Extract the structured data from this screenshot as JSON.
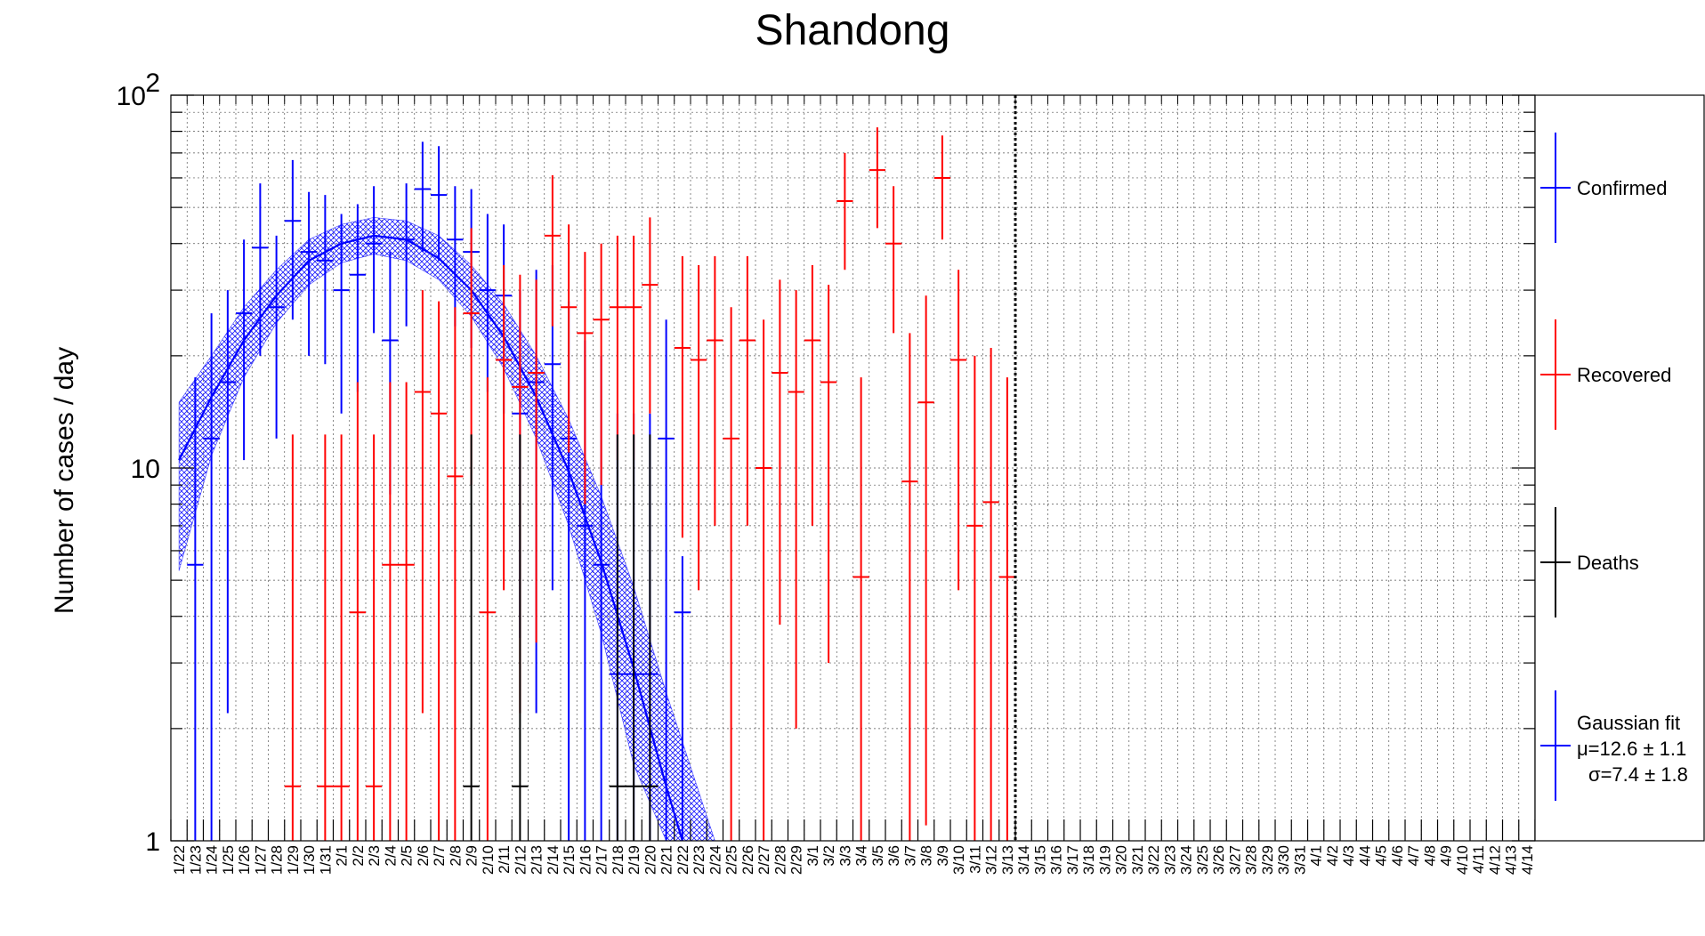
{
  "chart_data": {
    "type": "scatter",
    "title": "Shandong",
    "ylabel": "Number of cases / day",
    "xlabel": "",
    "y_scale": "log",
    "ylim": [
      1,
      100
    ],
    "y_tick_labels": [
      {
        "value": 1,
        "label": "1"
      },
      {
        "value": 10,
        "label": "10"
      },
      {
        "value": 100,
        "label": "10",
        "exponent": "2"
      }
    ],
    "grid": true,
    "legend_position": "right",
    "categories": [
      "1/22",
      "1/23",
      "1/24",
      "1/25",
      "1/26",
      "1/27",
      "1/28",
      "1/29",
      "1/30",
      "1/31",
      "2/1",
      "2/2",
      "2/3",
      "2/4",
      "2/5",
      "2/6",
      "2/7",
      "2/8",
      "2/9",
      "2/10",
      "2/11",
      "2/12",
      "2/13",
      "2/14",
      "2/15",
      "2/16",
      "2/17",
      "2/18",
      "2/19",
      "2/20",
      "2/21",
      "2/22",
      "2/23",
      "2/24",
      "2/25",
      "2/26",
      "2/27",
      "2/28",
      "2/29",
      "3/1",
      "3/2",
      "3/3",
      "3/4",
      "3/5",
      "3/6",
      "3/7",
      "3/8",
      "3/9",
      "3/10",
      "3/11",
      "3/12",
      "3/13",
      "3/14",
      "3/15",
      "3/16",
      "3/17",
      "3/18",
      "3/19",
      "3/20",
      "3/21",
      "3/22",
      "3/23",
      "3/24",
      "3/25",
      "3/26",
      "3/27",
      "3/28",
      "3/29",
      "3/30",
      "3/31",
      "4/1",
      "4/2",
      "4/3",
      "4/4",
      "4/5",
      "4/6",
      "4/7",
      "4/8",
      "4/9",
      "4/10",
      "4/11",
      "4/12",
      "4/13",
      "4/14"
    ],
    "vertical_marker_at": "3/14",
    "series": [
      {
        "name": "Confirmed",
        "color": "#0000ff",
        "points": [
          [
            "1/23",
            5.5,
            1,
            17.5
          ],
          [
            "1/24",
            12,
            1,
            26
          ],
          [
            "1/25",
            17,
            2.2,
            30
          ],
          [
            "1/26",
            26,
            10.5,
            41
          ],
          [
            "1/27",
            39,
            20,
            58
          ],
          [
            "1/28",
            27,
            12,
            42
          ],
          [
            "1/29",
            46,
            25,
            67
          ],
          [
            "1/30",
            38,
            20,
            55
          ],
          [
            "1/31",
            36,
            19,
            54
          ],
          [
            "2/1",
            30,
            14,
            48
          ],
          [
            "2/2",
            33,
            16,
            51
          ],
          [
            "2/3",
            40,
            23,
            57
          ],
          [
            "2/4",
            22,
            8.5,
            38
          ],
          [
            "2/5",
            41,
            24,
            58
          ],
          [
            "2/6",
            56,
            38,
            75
          ],
          [
            "2/7",
            54,
            36,
            73
          ],
          [
            "2/8",
            41,
            24,
            57
          ],
          [
            "2/9",
            38,
            21,
            56
          ],
          [
            "2/10",
            30,
            16,
            48
          ],
          [
            "2/11",
            29,
            14,
            45
          ],
          [
            "2/12",
            14,
            3.5,
            30
          ],
          [
            "2/13",
            17,
            2.2,
            34
          ],
          [
            "2/14",
            19,
            4.7,
            35
          ],
          [
            "2/15",
            12,
            1,
            28
          ],
          [
            "2/16",
            7,
            1,
            22
          ],
          [
            "2/17",
            5.5,
            1,
            20
          ],
          [
            "2/18",
            2.8,
            1,
            14
          ],
          [
            "2/19",
            2.8,
            1,
            14
          ],
          [
            "2/20",
            2.8,
            1,
            14
          ],
          [
            "2/21",
            12,
            1,
            25
          ],
          [
            "2/22",
            4.1,
            1,
            5.8
          ]
        ]
      },
      {
        "name": "Recovered",
        "color": "#ff0000",
        "points": [
          [
            "1/29",
            1.4,
            1,
            12.3
          ],
          [
            "1/31",
            1.4,
            1,
            12.3
          ],
          [
            "2/1",
            1.4,
            1,
            12.3
          ],
          [
            "2/2",
            4.1,
            1,
            17
          ],
          [
            "2/3",
            1.4,
            1,
            12.3
          ],
          [
            "2/4",
            5.5,
            1,
            17
          ],
          [
            "2/5",
            5.5,
            1,
            17
          ],
          [
            "2/6",
            16,
            2.2,
            30
          ],
          [
            "2/7",
            14,
            1,
            28
          ],
          [
            "2/8",
            9.5,
            1,
            27
          ],
          [
            "2/9",
            26,
            9,
            44
          ],
          [
            "2/10",
            4.1,
            1,
            17.5
          ],
          [
            "2/11",
            19.5,
            4.7,
            35
          ],
          [
            "2/12",
            16.5,
            2.2,
            33
          ],
          [
            "2/13",
            18,
            3.4,
            32
          ],
          [
            "2/14",
            42,
            24,
            61
          ],
          [
            "2/15",
            27,
            11,
            45
          ],
          [
            "2/16",
            23,
            8,
            38
          ],
          [
            "2/17",
            25,
            9,
            40
          ],
          [
            "2/18",
            27,
            10.5,
            42
          ],
          [
            "2/19",
            27,
            10.5,
            42
          ],
          [
            "2/20",
            31,
            14,
            47
          ],
          [
            "2/22",
            21,
            6.5,
            37
          ],
          [
            "2/23",
            19.5,
            4.7,
            35
          ],
          [
            "2/24",
            22,
            7,
            37
          ],
          [
            "2/25",
            12,
            1,
            27
          ],
          [
            "2/26",
            22,
            7,
            37
          ],
          [
            "2/27",
            10,
            1,
            25
          ],
          [
            "2/28",
            18,
            3.8,
            32
          ],
          [
            "2/29",
            16,
            2,
            30
          ],
          [
            "3/1",
            22,
            7,
            35
          ],
          [
            "3/2",
            17,
            3,
            31
          ],
          [
            "3/3",
            52,
            34,
            70
          ],
          [
            "3/4",
            5.1,
            1,
            17.5
          ],
          [
            "3/5",
            63,
            44,
            82
          ],
          [
            "3/6",
            40,
            23,
            57
          ],
          [
            "3/7",
            9.2,
            1,
            23
          ],
          [
            "3/8",
            15,
            1.1,
            29
          ],
          [
            "3/9",
            60,
            41,
            78
          ],
          [
            "3/10",
            19.5,
            4.7,
            34
          ],
          [
            "3/11",
            7,
            1,
            20
          ],
          [
            "3/12",
            8.1,
            1,
            21
          ],
          [
            "3/13",
            5.1,
            1,
            17.5
          ]
        ]
      },
      {
        "name": "Deaths",
        "color": "#000000",
        "points": [
          [
            "2/9",
            1.4,
            1,
            12.3
          ],
          [
            "2/12",
            1.4,
            1,
            12.3
          ],
          [
            "2/18",
            1.4,
            1,
            12.3
          ],
          [
            "2/19",
            1.4,
            1,
            12.3
          ],
          [
            "2/20",
            1.4,
            1,
            12.3
          ]
        ]
      }
    ],
    "fit": {
      "name": "Gaussian fit",
      "color": "#0000ff",
      "mu_label": "μ=12.6 ± 1.1",
      "sigma_label": "σ=7.4 ± 1.8",
      "curve": [
        [
          "1/22",
          10.5
        ],
        [
          "1/24",
          15.5
        ],
        [
          "1/26",
          22
        ],
        [
          "1/28",
          29
        ],
        [
          "1/30",
          36
        ],
        [
          "2/1",
          40
        ],
        [
          "2/3",
          42
        ],
        [
          "2/5",
          41
        ],
        [
          "2/7",
          36.5
        ],
        [
          "2/9",
          30
        ],
        [
          "2/11",
          22.5
        ],
        [
          "2/13",
          15.5
        ],
        [
          "2/15",
          9.8
        ],
        [
          "2/17",
          5.6
        ],
        [
          "2/19",
          2.9
        ],
        [
          "2/21",
          1.4
        ],
        [
          "2/22",
          1.0
        ]
      ],
      "band": [
        [
          "1/22",
          5.3,
          15
        ],
        [
          "1/24",
          10.8,
          20
        ],
        [
          "1/26",
          17.5,
          27
        ],
        [
          "1/28",
          24.5,
          34
        ],
        [
          "1/30",
          31,
          41
        ],
        [
          "2/1",
          35.5,
          45
        ],
        [
          "2/3",
          37.5,
          47
        ],
        [
          "2/5",
          36,
          46
        ],
        [
          "2/7",
          32,
          42
        ],
        [
          "2/9",
          25.5,
          35
        ],
        [
          "2/11",
          18.5,
          27.5
        ],
        [
          "2/13",
          12,
          20
        ],
        [
          "2/15",
          7,
          13.5
        ],
        [
          "2/17",
          3.6,
          8.4
        ],
        [
          "2/19",
          1.6,
          4.8
        ],
        [
          "2/21",
          1.0,
          2.5
        ],
        [
          "2/24",
          1.0,
          1.0
        ]
      ]
    }
  }
}
